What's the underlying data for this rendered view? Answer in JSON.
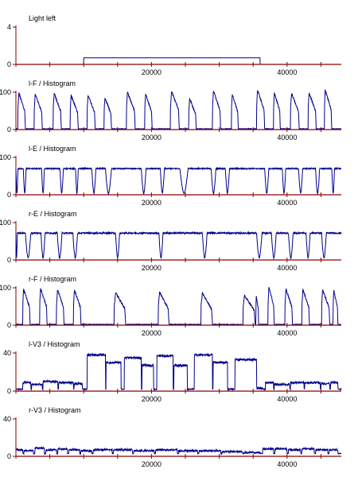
{
  "colors": {
    "axis": "#8b0000",
    "trace": "#00008b",
    "text": "#000000"
  },
  "chart_data": [
    {
      "type": "line",
      "title": "Light left",
      "ylim": [
        0,
        4
      ],
      "yticks": [
        "0",
        "4"
      ],
      "xlim": [
        0,
        48000
      ],
      "xticks": [
        20000,
        40000
      ],
      "xtick_labels": [
        "20000",
        "40000"
      ],
      "series": [
        {
          "signal": "box",
          "on_start": 10000,
          "on_end": 36000,
          "on_level": 0.7,
          "off_level": 0
        }
      ]
    },
    {
      "type": "line",
      "title": "l-F / Histogram",
      "ylim": [
        0,
        100
      ],
      "yticks": [
        "0",
        "100"
      ],
      "xlim": [
        0,
        48000
      ],
      "xticks": [
        20000,
        40000
      ],
      "xtick_labels": [
        "20000",
        "40000"
      ],
      "series": [
        {
          "signal": "bursts",
          "events": [
            [
              300,
              1400,
              98
            ],
            [
              2700,
              3900,
              95
            ],
            [
              5500,
              6700,
              97
            ],
            [
              8000,
              9200,
              92
            ],
            [
              10500,
              11700,
              93
            ],
            [
              13000,
              14100,
              85
            ],
            [
              16300,
              17600,
              100
            ],
            [
              19000,
              20100,
              95
            ],
            [
              22800,
              24100,
              104
            ],
            [
              25500,
              26600,
              83
            ],
            [
              29000,
              30200,
              104
            ],
            [
              31800,
              32800,
              95
            ],
            [
              35500,
              36700,
              106
            ],
            [
              38000,
              39000,
              100
            ],
            [
              40500,
              41800,
              97
            ],
            [
              43100,
              44300,
              98
            ],
            [
              45500,
              46600,
              106
            ]
          ],
          "baseline": 2,
          "noise": 1.5
        }
      ]
    },
    {
      "type": "line",
      "title": "l-E / Histogram",
      "ylim": [
        0,
        100
      ],
      "yticks": [
        "0",
        "100"
      ],
      "xlim": [
        0,
        48000
      ],
      "xticks": [
        20000,
        40000
      ],
      "xtick_labels": [
        "20000",
        "40000"
      ],
      "series": [
        {
          "signal": "plateau",
          "high": 70,
          "low": 3,
          "dips": [
            [
              0,
              300
            ],
            [
              1100,
              1500
            ],
            [
              3800,
              4200
            ],
            [
              6500,
              7000
            ],
            [
              8800,
              9200
            ],
            [
              11200,
              11800
            ],
            [
              13200,
              14100
            ],
            [
              18500,
              19200
            ],
            [
              21300,
              21900
            ],
            [
              24200,
              25400
            ],
            [
              28800,
              29500
            ],
            [
              30900,
              31500
            ],
            [
              36700,
              37300
            ],
            [
              39300,
              39800
            ],
            [
              41700,
              42300
            ],
            [
              44200,
              44800
            ],
            [
              46600,
              47000
            ]
          ],
          "noise": 3
        }
      ]
    },
    {
      "type": "line",
      "title": "r-E / Histogram",
      "ylim": [
        0,
        100
      ],
      "yticks": [
        "0",
        "100"
      ],
      "xlim": [
        0,
        48000
      ],
      "xticks": [
        20000,
        40000
      ],
      "xtick_labels": [
        "20000",
        "40000"
      ],
      "series": [
        {
          "signal": "plateau",
          "high": 72,
          "low": 5,
          "dips": [
            [
              0,
              200
            ],
            [
              1400,
              2200
            ],
            [
              3700,
              4300
            ],
            [
              6100,
              6800
            ],
            [
              8400,
              9100
            ],
            [
              14700,
              15300
            ],
            [
              21100,
              21700
            ],
            [
              27500,
              28200
            ],
            [
              35500,
              36300
            ],
            [
              37700,
              38400
            ],
            [
              40200,
              40900
            ],
            [
              42800,
              43400
            ],
            [
              45100,
              45800
            ]
          ],
          "noise": 4
        }
      ]
    },
    {
      "type": "line",
      "title": "r-F / Histogram",
      "ylim": [
        0,
        100
      ],
      "yticks": [
        "0",
        "100"
      ],
      "xlim": [
        0,
        48000
      ],
      "xticks": [
        20000,
        40000
      ],
      "xtick_labels": [
        "20000",
        "40000"
      ],
      "series": [
        {
          "signal": "bursts",
          "events": [
            [
              1000,
              2100,
              96
            ],
            [
              3500,
              4600,
              98
            ],
            [
              6000,
              7100,
              96
            ],
            [
              8500,
              9600,
              95
            ],
            [
              14500,
              16200,
              88
            ],
            [
              21000,
              22600,
              88
            ],
            [
              27300,
              29000,
              86
            ],
            [
              33500,
              35300,
              80
            ],
            [
              37200,
              38100,
              104
            ],
            [
              39700,
              40800,
              97
            ],
            [
              42200,
              43300,
              96
            ],
            [
              45100,
              46300,
              94
            ],
            [
              46800,
              47500,
              94
            ],
            [
              35400,
              35800,
              80
            ]
          ],
          "baseline": 2,
          "noise": 1.5
        }
      ]
    },
    {
      "type": "line",
      "title": "l-V3 / Histogram",
      "ylim": [
        0,
        40
      ],
      "yticks": [
        "0",
        "40"
      ],
      "xlim": [
        0,
        48000
      ],
      "xticks": [
        20000,
        40000
      ],
      "xtick_labels": [
        "20000",
        "40000"
      ],
      "series": [
        {
          "signal": "steps",
          "noise": 1.2,
          "base": 2,
          "segments": [
            [
              1000,
              2200,
              9
            ],
            [
              2300,
              3900,
              7
            ],
            [
              4000,
              6200,
              10
            ],
            [
              6300,
              8500,
              9
            ],
            [
              8600,
              9800,
              8
            ],
            [
              10500,
              13200,
              38
            ],
            [
              13300,
              15500,
              30
            ],
            [
              16000,
              18500,
              35
            ],
            [
              18600,
              20300,
              27
            ],
            [
              20800,
              23200,
              37
            ],
            [
              23300,
              25300,
              27
            ],
            [
              26300,
              29000,
              38
            ],
            [
              29100,
              31200,
              30
            ],
            [
              32300,
              35700,
              33
            ],
            [
              35500,
              36500,
              3
            ],
            [
              36800,
              38000,
              9
            ],
            [
              38100,
              40400,
              7
            ],
            [
              40500,
              42500,
              9
            ],
            [
              42600,
              44900,
              9
            ],
            [
              45000,
              46300,
              8
            ],
            [
              46400,
              47500,
              9
            ]
          ]
        }
      ]
    },
    {
      "type": "line",
      "title": "r-V3 / Histogram",
      "ylim": [
        0,
        40
      ],
      "yticks": [
        "0",
        "40"
      ],
      "xlim": [
        0,
        48000
      ],
      "xticks": [
        20000,
        40000
      ],
      "xtick_labels": [
        "20000",
        "40000"
      ],
      "series": [
        {
          "signal": "steps",
          "noise": 1.0,
          "base": 3,
          "segments": [
            [
              0,
              1000,
              7
            ],
            [
              1200,
              2600,
              6
            ],
            [
              2800,
              4200,
              9
            ],
            [
              4400,
              6000,
              7
            ],
            [
              6200,
              7600,
              8
            ],
            [
              7800,
              9400,
              7
            ],
            [
              9600,
              11200,
              6
            ],
            [
              11400,
              14200,
              7
            ],
            [
              14400,
              17200,
              7
            ],
            [
              17400,
              20400,
              6
            ],
            [
              20600,
              23800,
              7
            ],
            [
              24000,
              26800,
              6
            ],
            [
              27000,
              30200,
              6
            ],
            [
              30400,
              33400,
              5
            ],
            [
              33600,
              36000,
              4
            ],
            [
              36400,
              38000,
              8
            ],
            [
              38200,
              40000,
              8
            ],
            [
              40200,
              42000,
              7
            ],
            [
              42200,
              44000,
              8
            ],
            [
              44200,
              46000,
              7
            ],
            [
              46200,
              47500,
              7
            ]
          ]
        }
      ]
    }
  ]
}
